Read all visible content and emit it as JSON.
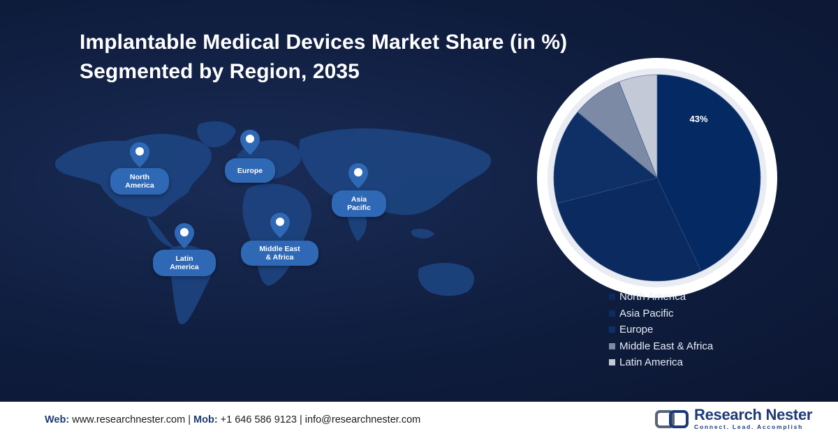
{
  "title_line1": "Implantable Medical Devices Market Share (in %)",
  "title_line2": "Segmented by Region, 2035",
  "map_regions": [
    {
      "id": "north-america",
      "line1": "North",
      "line2": "America"
    },
    {
      "id": "europe",
      "line1": "Europe",
      "line2": ""
    },
    {
      "id": "asia-pacific",
      "line1": "Asia",
      "line2": "Pacific"
    },
    {
      "id": "latin-america",
      "line1": "Latin",
      "line2": "America"
    },
    {
      "id": "middle-east-africa",
      "line1": "Middle East",
      "line2": "& Africa"
    }
  ],
  "chart_data": {
    "type": "pie",
    "title": "Implantable Medical Devices Market Share (in %) Segmented by Region, 2035",
    "slices": [
      {
        "label": "North America",
        "value": 43,
        "color": "#052a63",
        "shown_label": "43%"
      },
      {
        "label": "Asia Pacific",
        "value": 28,
        "color": "#0b2b60",
        "shown_label": ""
      },
      {
        "label": "Europe",
        "value": 15,
        "color": "#0f3066",
        "shown_label": ""
      },
      {
        "label": "Middle East & Africa",
        "value": 8,
        "color": "#7d8aa6",
        "shown_label": ""
      },
      {
        "label": "Latin America",
        "value": 6,
        "color": "#c3c9d6",
        "shown_label": ""
      }
    ],
    "legend_position": "bottom-right"
  },
  "legend": [
    {
      "label": "North America",
      "color": "#0a2a60"
    },
    {
      "label": "Asia Pacific",
      "color": "#0c2c62"
    },
    {
      "label": "Europe",
      "color": "#0e3068"
    },
    {
      "label": "Middle East & Africa",
      "color": "#7d8aa6"
    },
    {
      "label": "Latin America",
      "color": "#c3c9d6"
    }
  ],
  "footer": {
    "web_label": "Web:",
    "web_value": " www.researchnester.com",
    "sep1": " | ",
    "mob_label": "Mob:",
    "mob_value": " +1 646 586 9123",
    "sep2": " | ",
    "email": "info@researchnester.com",
    "brand_name": "Research Nester",
    "brand_tagline": "Connect. Lead. Accomplish",
    "brand_icon": "research-nester-logo-icon"
  }
}
